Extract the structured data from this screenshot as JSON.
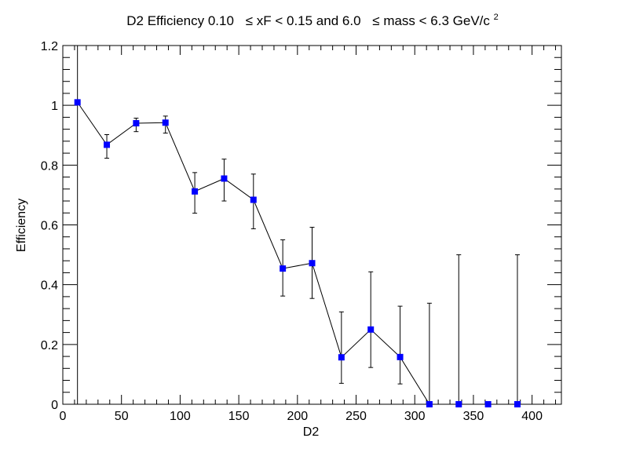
{
  "chart_data": {
    "type": "scatter",
    "title": {
      "prefix": "D2 Efficiency 0.10",
      "part2": "≤ xF < 0.15 and 6.0",
      "part3": "≤ mass < 6.3 GeV/c",
      "sup": "2"
    },
    "xlabel": "D2",
    "ylabel": "Efficiency",
    "xlim": [
      0,
      425
    ],
    "ylim": [
      0,
      1.2
    ],
    "xticks": [
      0,
      50,
      100,
      150,
      200,
      250,
      300,
      350,
      400
    ],
    "yticks": [
      0,
      0.2,
      0.4,
      0.6,
      0.8,
      1,
      1.2
    ],
    "ytick_labels": [
      "0",
      "0.2",
      "0.4",
      "0.6",
      "0.8",
      "1",
      "1.2"
    ],
    "marker_color": "#0000ff",
    "line_color": "#000000",
    "series": [
      {
        "x": [
          12.5,
          37.5,
          62.5,
          87.5,
          112.5,
          137.5,
          162.5,
          187.5,
          212.5,
          237.5,
          262.5,
          287.5,
          312.5,
          337.5,
          362.5,
          387.5
        ],
        "y": [
          1.01,
          0.868,
          0.94,
          0.942,
          0.712,
          0.755,
          0.684,
          0.454,
          0.472,
          0.157,
          0.25,
          0.158,
          0.0,
          0.0,
          0.0,
          0.0
        ],
        "err_low": [
          1.01,
          0.045,
          0.028,
          0.035,
          0.073,
          0.075,
          0.097,
          0.092,
          0.118,
          0.087,
          0.127,
          0.09,
          0.0,
          0.0,
          0.0,
          0.0
        ],
        "err_high": [
          0.19,
          0.034,
          0.017,
          0.022,
          0.063,
          0.065,
          0.086,
          0.096,
          0.12,
          0.152,
          0.193,
          0.17,
          0.338,
          0.5,
          0.0,
          0.5
        ]
      }
    ]
  }
}
